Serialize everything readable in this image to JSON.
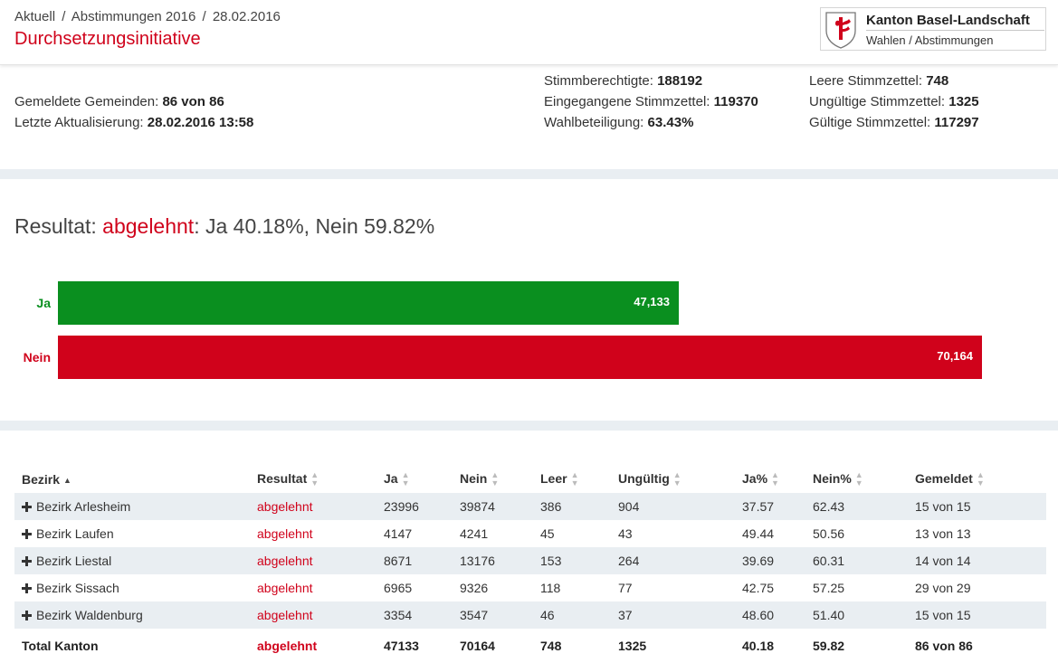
{
  "header": {
    "breadcrumb": [
      "Aktuell",
      "Abstimmungen 2016",
      "28.02.2016"
    ],
    "breadcrumb_sep": "/",
    "title": "Durchsetzungsinitiative",
    "logo_name": "Kanton Basel-Landschaft",
    "logo_sub": "Wahlen / Abstimmungen"
  },
  "stats": {
    "gemeinden_label": "Gemeldete Gemeinden:",
    "gemeinden_value": "86 von 86",
    "update_label": "Letzte Aktualisierung:",
    "update_value": "28.02.2016 13:58",
    "berechtigte_label": "Stimmberechtigte:",
    "berechtigte_value": "188192",
    "eingegangen_label": "Eingegangene Stimmzettel:",
    "eingegangen_value": "119370",
    "beteiligung_label": "Wahlbeteiligung:",
    "beteiligung_value": "63.43%",
    "leer_label": "Leere Stimmzettel:",
    "leer_value": "748",
    "ungueltig_label": "Ungültige Stimmzettel:",
    "ungueltig_value": "1325",
    "gueltig_label": "Gültige Stimmzettel:",
    "gueltig_value": "117297"
  },
  "result": {
    "prefix": "Resultat:",
    "verdict": "abgelehnt",
    "suffix": ": Ja 40.18%, Nein 59.82%"
  },
  "bars": {
    "ja_label": "Ja",
    "ja_count": 47133,
    "ja_value": "47,133",
    "ja_color": "#0a8f1f",
    "nein_label": "Nein",
    "nein_count": 70164,
    "nein_value": "70,164",
    "nein_color": "#d0021b"
  },
  "table": {
    "headers": [
      "Bezirk",
      "Resultat",
      "Ja",
      "Nein",
      "Leer",
      "Ungültig",
      "Ja%",
      "Nein%",
      "Gemeldet"
    ],
    "rows": [
      [
        "Bezirk Arlesheim",
        "abgelehnt",
        "23996",
        "39874",
        "386",
        "904",
        "37.57",
        "62.43",
        "15 von 15"
      ],
      [
        "Bezirk Laufen",
        "abgelehnt",
        "4147",
        "4241",
        "45",
        "43",
        "49.44",
        "50.56",
        "13 von 13"
      ],
      [
        "Bezirk Liestal",
        "abgelehnt",
        "8671",
        "13176",
        "153",
        "264",
        "39.69",
        "60.31",
        "14 von 14"
      ],
      [
        "Bezirk Sissach",
        "abgelehnt",
        "6965",
        "9326",
        "118",
        "77",
        "42.75",
        "57.25",
        "29 von 29"
      ],
      [
        "Bezirk Waldenburg",
        "abgelehnt",
        "3354",
        "3547",
        "46",
        "37",
        "48.60",
        "51.40",
        "15 von 15"
      ]
    ],
    "total": [
      "Total Kanton",
      "abgelehnt",
      "47133",
      "70164",
      "748",
      "1325",
      "40.18",
      "59.82",
      "86 von 86"
    ]
  },
  "colors": {
    "accent": "#d0021b",
    "yes": "#0a8f1f",
    "band": "#e9eef2"
  }
}
